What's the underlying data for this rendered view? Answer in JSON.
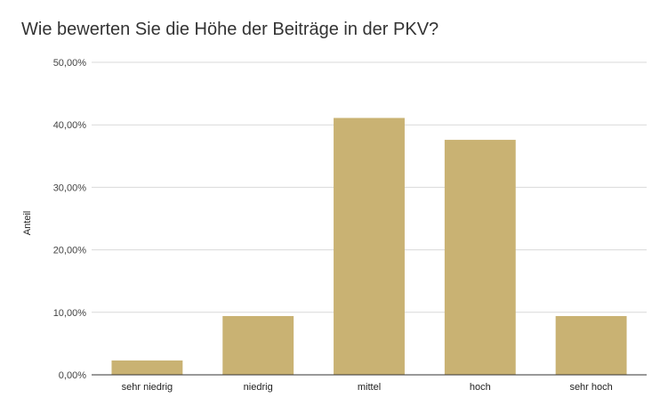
{
  "chart_data": {
    "type": "bar",
    "title": "Wie bewerten Sie die Höhe der Beiträge in der PKV?",
    "xlabel": "",
    "ylabel": "Anteil",
    "categories": [
      "sehr niedrig",
      "niedrig",
      "mittel",
      "hoch",
      "sehr hoch"
    ],
    "values": [
      2.3,
      9.4,
      41.1,
      37.6,
      9.4
    ],
    "ylim": [
      0,
      50
    ],
    "y_ticks": [
      0,
      10,
      20,
      30,
      40,
      50
    ],
    "y_tick_labels": [
      "0,00%",
      "10,00%",
      "20,00%",
      "30,00%",
      "40,00%",
      "50,00%"
    ],
    "grid": true,
    "legend": "none",
    "bar_color": "#c9b273",
    "grid_color": "#d9d9d9",
    "axis_color": "#333333"
  }
}
